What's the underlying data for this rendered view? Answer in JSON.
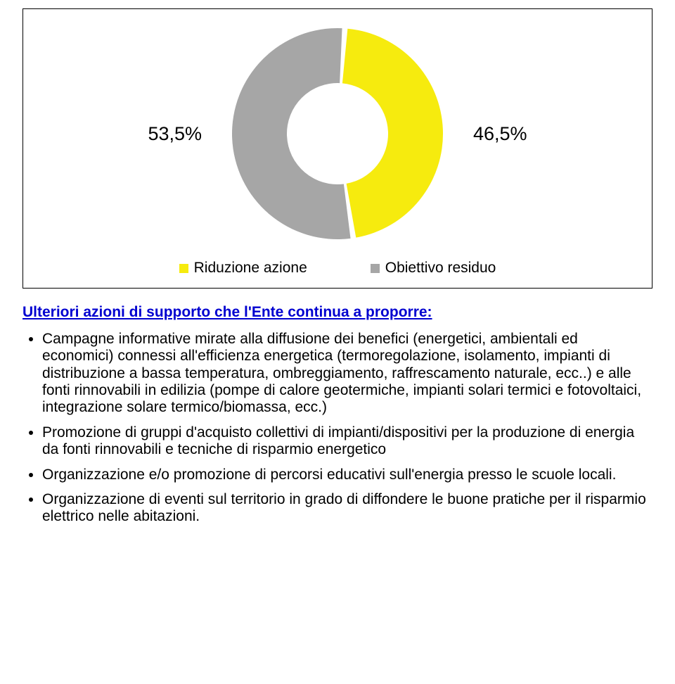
{
  "chart": {
    "type": "donut",
    "slices": [
      {
        "label": "Riduzione azione",
        "value": 46.5,
        "color": "#f6eb0e"
      },
      {
        "label": "Obiettivo residuo",
        "value": 53.5,
        "color": "#a6a6a6"
      }
    ],
    "pct_left": "53,5%",
    "pct_right": "46,5%",
    "pct_fontsize": 27,
    "legend_fontsize": 21,
    "outer_radius": 150,
    "inner_radius": 72,
    "gap_deg": 3,
    "start_angle_deg": -86,
    "bg": "#ffffff",
    "border": "#000000",
    "swatch_size": 13
  },
  "section_title": "Ulteriori azioni di supporto che l'Ente continua a proporre:",
  "section_title_color": "#0000d0",
  "bullets": [
    "Campagne informative mirate alla diffusione dei benefici (energetici, ambientali ed economici) connessi all'efficienza energetica (termoregolazione, isolamento, impianti di distribuzione a bassa temperatura, ombreggiamento, raffrescamento naturale, ecc..) e alle fonti rinnovabili in edilizia (pompe di calore geotermiche, impianti solari termici e fotovoltaici, integrazione solare termico/biomassa, ecc.)",
    "Promozione di gruppi d'acquisto collettivi di impianti/dispositivi per la produzione di energia da fonti rinnovabili e tecniche di risparmio energetico",
    "Organizzazione e/o promozione di percorsi educativi sull'energia presso le scuole locali.",
    "Organizzazione di eventi sul territorio in grado di diffondere le buone pratiche per il risparmio elettrico nelle abitazioni."
  ]
}
